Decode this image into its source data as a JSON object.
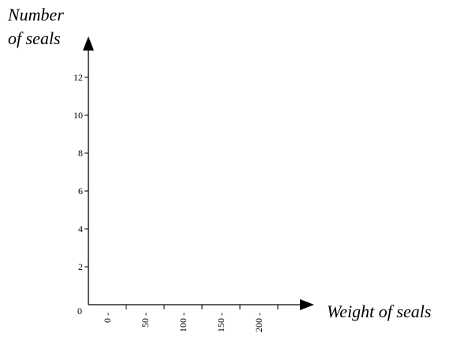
{
  "chart_data": {
    "type": "bar",
    "xlabel": "Weight of seals",
    "ylabel_line1": "Number",
    "ylabel_line2": "of seals",
    "y_ticks": [
      0,
      2,
      4,
      6,
      8,
      10,
      12
    ],
    "x_ticks": [
      "0 -",
      "50 -",
      "100 -",
      "150 -",
      "200 -"
    ],
    "ylim": [
      0,
      12
    ],
    "grid": false,
    "series": []
  }
}
